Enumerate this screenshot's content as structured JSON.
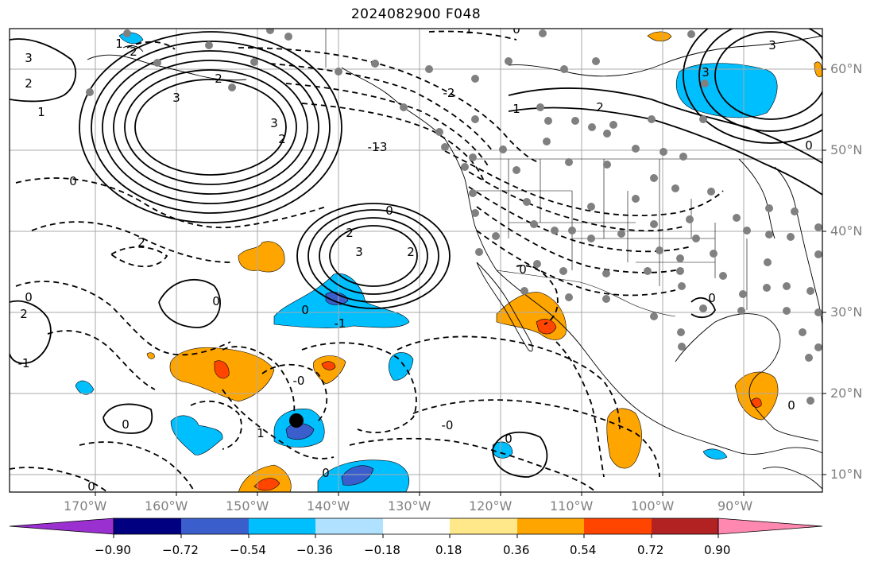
{
  "title": "2024082900 F048",
  "map": {
    "lon_labels": [
      "170°W",
      "160°W",
      "150°W",
      "140°W",
      "130°W",
      "120°W",
      "110°W",
      "100°W",
      "90°W"
    ],
    "lat_labels": [
      "60°N",
      "50°N",
      "40°N",
      "30°N",
      "20°N",
      "10°N"
    ],
    "contour_labels": [
      "1",
      "3",
      "2",
      "3",
      "2",
      "0",
      "2",
      "3",
      "3",
      "2",
      "1",
      "0",
      "0",
      "2",
      "-1",
      "-3",
      "-2",
      "0",
      "2",
      "3",
      "2",
      "0",
      "0",
      "-1",
      "0",
      "0",
      "1",
      "-0",
      "0",
      "-1",
      "0",
      "-0",
      "0",
      "0",
      "0",
      "0",
      "2",
      "3",
      "1",
      "2",
      "1"
    ]
  },
  "colorbar": {
    "ticks": [
      "−0.90",
      "−0.72",
      "−0.54",
      "−0.36",
      "−0.18",
      "0.18",
      "0.36",
      "0.54",
      "0.72",
      "0.90"
    ],
    "colors": [
      "#9b30d0",
      "#000080",
      "#3a5fcd",
      "#00bfff",
      "#b0e2ff",
      "#ffffff",
      "#ffe88a",
      "#ffa500",
      "#ff4500",
      "#b22222",
      "#ff88b0"
    ]
  }
}
